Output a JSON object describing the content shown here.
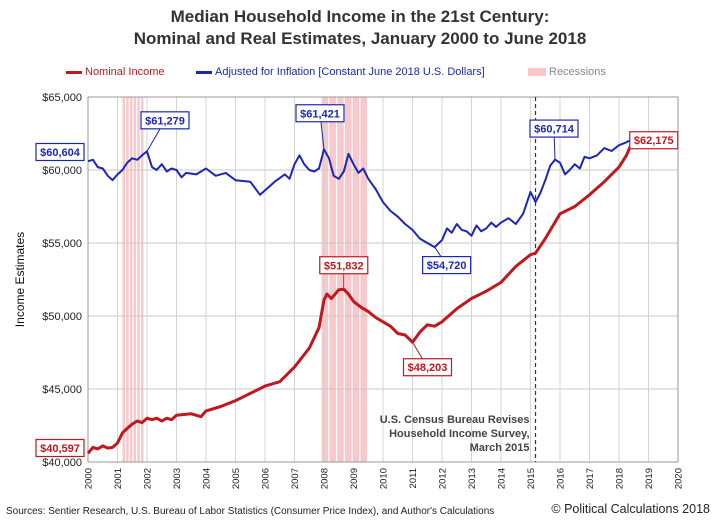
{
  "title_line1": "Median Household Income in the 21st Century:",
  "title_line2": "Nominal and Real Estimates, January 2000 to June 2018",
  "legend": {
    "nominal": "Nominal Income",
    "real": "Adjusted for Inflation [Constant June 2018 U.S. Dollars]",
    "recessions": "Recessions"
  },
  "colors": {
    "nominal": "#c0181e",
    "real": "#1c27b5",
    "recession": "#f5b5b8"
  },
  "footer": {
    "source": "Sources: Sentier Research, U.S. Bureau of Labor Statistics (Consumer  Price Index), and Author's Calculations",
    "copyright": "© Political Calculations 2018"
  },
  "chart_data": {
    "type": "line",
    "xlabel": "",
    "ylabel": "Income Estimates",
    "xlim": [
      2000,
      2020
    ],
    "ylim": [
      40000,
      65000
    ],
    "x_ticks": [
      "2000",
      "2001",
      "2002",
      "2003",
      "2004",
      "2005",
      "2006",
      "2007",
      "2008",
      "2009",
      "2010",
      "2011",
      "2012",
      "2013",
      "2014",
      "2015",
      "2016",
      "2017",
      "2018",
      "2019",
      "2020"
    ],
    "y_ticks": [
      "$40,000",
      "$45,000",
      "$50,000",
      "$55,000",
      "$60,000",
      "$65,000"
    ],
    "grid": true,
    "legend_position": "top",
    "recessions": [
      [
        2001.17,
        2001.92
      ],
      [
        2007.92,
        2009.5
      ]
    ],
    "event_line": {
      "x": 2015.17,
      "label": [
        "U.S. Census Bureau Revises",
        "Household Income Survey,",
        "March 2015"
      ]
    },
    "series": [
      {
        "name": "Nominal Income",
        "color": "#c0181e",
        "points": [
          [
            2000.0,
            40597
          ],
          [
            2000.17,
            41000
          ],
          [
            2000.33,
            40900
          ],
          [
            2000.5,
            41100
          ],
          [
            2000.67,
            40950
          ],
          [
            2000.83,
            41000
          ],
          [
            2001.0,
            41300
          ],
          [
            2001.17,
            42000
          ],
          [
            2001.33,
            42300
          ],
          [
            2001.5,
            42600
          ],
          [
            2001.67,
            42800
          ],
          [
            2001.83,
            42700
          ],
          [
            2002.0,
            43000
          ],
          [
            2002.17,
            42900
          ],
          [
            2002.33,
            43000
          ],
          [
            2002.5,
            42800
          ],
          [
            2002.67,
            43000
          ],
          [
            2002.83,
            42900
          ],
          [
            2003.0,
            43200
          ],
          [
            2003.5,
            43300
          ],
          [
            2003.83,
            43100
          ],
          [
            2004.0,
            43500
          ],
          [
            2004.5,
            43800
          ],
          [
            2005.0,
            44200
          ],
          [
            2005.5,
            44700
          ],
          [
            2006.0,
            45200
          ],
          [
            2006.5,
            45500
          ],
          [
            2007.0,
            46500
          ],
          [
            2007.5,
            47800
          ],
          [
            2007.83,
            49200
          ],
          [
            2008.0,
            51100
          ],
          [
            2008.1,
            51500
          ],
          [
            2008.25,
            51200
          ],
          [
            2008.5,
            51800
          ],
          [
            2008.67,
            51832
          ],
          [
            2008.83,
            51500
          ],
          [
            2009.0,
            51000
          ],
          [
            2009.25,
            50600
          ],
          [
            2009.5,
            50300
          ],
          [
            2009.75,
            49900
          ],
          [
            2010.0,
            49600
          ],
          [
            2010.25,
            49300
          ],
          [
            2010.5,
            48800
          ],
          [
            2010.75,
            48700
          ],
          [
            2011.0,
            48203
          ],
          [
            2011.25,
            48900
          ],
          [
            2011.5,
            49400
          ],
          [
            2011.75,
            49300
          ],
          [
            2012.0,
            49600
          ],
          [
            2012.5,
            50500
          ],
          [
            2013.0,
            51200
          ],
          [
            2013.5,
            51700
          ],
          [
            2014.0,
            52300
          ],
          [
            2014.5,
            53400
          ],
          [
            2015.0,
            54200
          ],
          [
            2015.17,
            54300
          ],
          [
            2015.5,
            55300
          ],
          [
            2016.0,
            57000
          ],
          [
            2016.5,
            57500
          ],
          [
            2017.0,
            58300
          ],
          [
            2017.5,
            59200
          ],
          [
            2018.0,
            60200
          ],
          [
            2018.25,
            61000
          ],
          [
            2018.5,
            62175
          ]
        ]
      },
      {
        "name": "Adjusted for Inflation [Constant June 2018 U.S. Dollars]",
        "color": "#1c27b5",
        "points": [
          [
            2000.0,
            60604
          ],
          [
            2000.17,
            60700
          ],
          [
            2000.33,
            60200
          ],
          [
            2000.5,
            60100
          ],
          [
            2000.67,
            59600
          ],
          [
            2000.83,
            59300
          ],
          [
            2001.0,
            59700
          ],
          [
            2001.17,
            60000
          ],
          [
            2001.33,
            60500
          ],
          [
            2001.5,
            60800
          ],
          [
            2001.67,
            60700
          ],
          [
            2001.83,
            61000
          ],
          [
            2002.0,
            61279
          ],
          [
            2002.17,
            60200
          ],
          [
            2002.33,
            60000
          ],
          [
            2002.5,
            60400
          ],
          [
            2002.67,
            59900
          ],
          [
            2002.83,
            60100
          ],
          [
            2003.0,
            60000
          ],
          [
            2003.17,
            59500
          ],
          [
            2003.33,
            59800
          ],
          [
            2003.67,
            59700
          ],
          [
            2004.0,
            60100
          ],
          [
            2004.33,
            59600
          ],
          [
            2004.67,
            59800
          ],
          [
            2005.0,
            59300
          ],
          [
            2005.5,
            59200
          ],
          [
            2005.83,
            58300
          ],
          [
            2006.0,
            58600
          ],
          [
            2006.33,
            59200
          ],
          [
            2006.67,
            59700
          ],
          [
            2006.83,
            59400
          ],
          [
            2007.0,
            60400
          ],
          [
            2007.17,
            61000
          ],
          [
            2007.33,
            60400
          ],
          [
            2007.5,
            60000
          ],
          [
            2007.67,
            59900
          ],
          [
            2007.83,
            60100
          ],
          [
            2008.0,
            61421
          ],
          [
            2008.17,
            60800
          ],
          [
            2008.33,
            59600
          ],
          [
            2008.5,
            59400
          ],
          [
            2008.67,
            59900
          ],
          [
            2008.83,
            61100
          ],
          [
            2009.0,
            60400
          ],
          [
            2009.17,
            59800
          ],
          [
            2009.33,
            60100
          ],
          [
            2009.5,
            59400
          ],
          [
            2009.75,
            58700
          ],
          [
            2010.0,
            57800
          ],
          [
            2010.25,
            57200
          ],
          [
            2010.5,
            56800
          ],
          [
            2010.75,
            56300
          ],
          [
            2011.0,
            55900
          ],
          [
            2011.25,
            55300
          ],
          [
            2011.5,
            55000
          ],
          [
            2011.75,
            54720
          ],
          [
            2012.0,
            55200
          ],
          [
            2012.17,
            56000
          ],
          [
            2012.33,
            55700
          ],
          [
            2012.5,
            56300
          ],
          [
            2012.67,
            55900
          ],
          [
            2012.83,
            55800
          ],
          [
            2013.0,
            55500
          ],
          [
            2013.17,
            56200
          ],
          [
            2013.33,
            55800
          ],
          [
            2013.5,
            56000
          ],
          [
            2013.67,
            56400
          ],
          [
            2013.83,
            56100
          ],
          [
            2014.0,
            56400
          ],
          [
            2014.25,
            56700
          ],
          [
            2014.5,
            56300
          ],
          [
            2014.75,
            57000
          ],
          [
            2015.0,
            58500
          ],
          [
            2015.17,
            57800
          ],
          [
            2015.33,
            58400
          ],
          [
            2015.5,
            59300
          ],
          [
            2015.67,
            60300
          ],
          [
            2015.83,
            60714
          ],
          [
            2016.0,
            60500
          ],
          [
            2016.17,
            59700
          ],
          [
            2016.33,
            60000
          ],
          [
            2016.5,
            60400
          ],
          [
            2016.67,
            60100
          ],
          [
            2016.83,
            60900
          ],
          [
            2017.0,
            60800
          ],
          [
            2017.25,
            61000
          ],
          [
            2017.5,
            61500
          ],
          [
            2017.75,
            61300
          ],
          [
            2018.0,
            61700
          ],
          [
            2018.25,
            61900
          ],
          [
            2018.5,
            62175
          ]
        ]
      }
    ],
    "annotations": [
      {
        "text": "$60,604",
        "x": 2000.0,
        "y": 60604,
        "series": "real"
      },
      {
        "text": "$61,279",
        "x": 2002.0,
        "y": 61279,
        "series": "real"
      },
      {
        "text": "$61,421",
        "x": 2008.0,
        "y": 61421,
        "series": "real"
      },
      {
        "text": "$54,720",
        "x": 2011.75,
        "y": 54720,
        "series": "real"
      },
      {
        "text": "$60,714",
        "x": 2015.83,
        "y": 60714,
        "series": "real"
      },
      {
        "text": "$62,175",
        "x": 2018.5,
        "y": 62175,
        "series": "nominal"
      },
      {
        "text": "$51,832",
        "x": 2008.67,
        "y": 51832,
        "series": "nominal"
      },
      {
        "text": "$48,203",
        "x": 2011.0,
        "y": 48203,
        "series": "nominal"
      },
      {
        "text": "$40,597",
        "x": 2000.0,
        "y": 40597,
        "series": "nominal"
      }
    ]
  }
}
